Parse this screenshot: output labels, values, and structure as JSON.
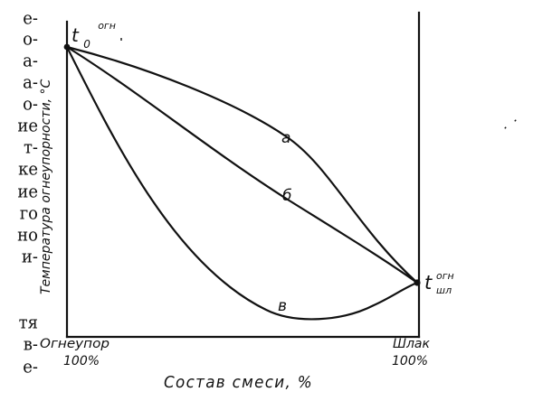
{
  "left_text_lines": [
    "е-",
    "о-",
    "а-",
    "а-",
    "о-",
    "ие",
    "т-",
    "ке",
    "ие",
    "го",
    "но",
    "и-",
    "",
    "тя",
    "в-",
    "е-"
  ],
  "diagram": {
    "y_axis_label": "Температура огнеупорности, °С",
    "x_axis_label": "Состав смеси, %",
    "left_label": "Огнеупор",
    "left_percent": "100%",
    "right_label": "Шлак",
    "right_percent": "100%",
    "start_point": {
      "main": "t",
      "sub": "0",
      "sup": "огн"
    },
    "end_point": {
      "main": "t",
      "sup": "огн",
      "sub": "шл"
    },
    "curves": [
      {
        "label": "а"
      },
      {
        "label": "б"
      },
      {
        "label": "в"
      }
    ]
  }
}
